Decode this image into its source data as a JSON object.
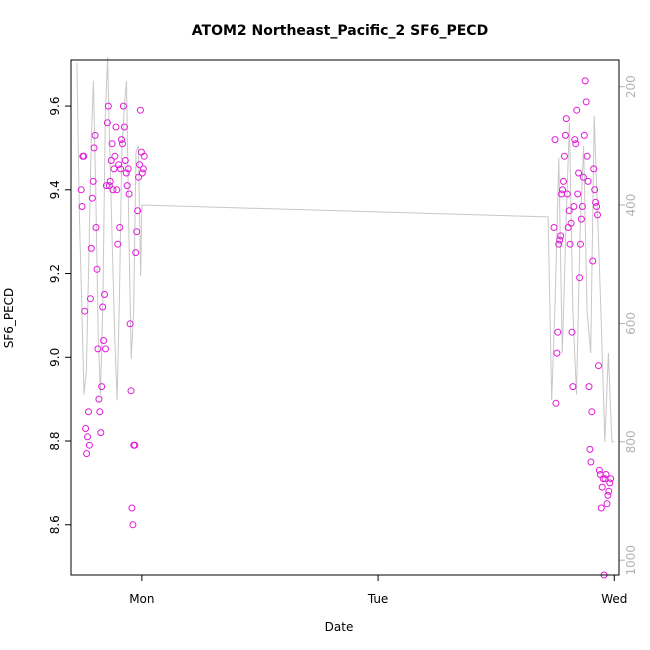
{
  "chart_data": {
    "type": "scatter",
    "title": "ATOM2 Northeast_Pacific_2 SF6_PECD",
    "xlabel": "Date",
    "ylabel": "SF6_PECD",
    "x_ticks": [
      "Mon",
      "Tue",
      "Wed"
    ],
    "x_range_days": [
      -0.3,
      2.02
    ],
    "ylim": [
      8.48,
      9.71
    ],
    "y_ticks": [
      8.6,
      8.8,
      9.0,
      9.2,
      9.4,
      9.6
    ],
    "right_axis": {
      "ticks": [
        200,
        400,
        600,
        800,
        1000
      ],
      "range": [
        155,
        1025
      ],
      "color": "#b3b3b3",
      "inverted": true
    },
    "point_color": "#e31ad8",
    "line_color": "#c8c8c8",
    "series": [
      {
        "kind": "points",
        "x": [
          -0.257,
          -0.253,
          -0.25,
          -0.246,
          -0.242,
          -0.238,
          -0.234,
          -0.23,
          -0.226,
          -0.222,
          -0.218,
          -0.214,
          -0.21,
          -0.206,
          -0.202,
          -0.198,
          -0.194,
          -0.19,
          -0.186,
          -0.182,
          -0.178,
          -0.174,
          -0.17,
          -0.166,
          -0.162,
          -0.158,
          -0.154,
          -0.15,
          -0.146,
          -0.142,
          -0.138,
          -0.134,
          -0.13,
          -0.126,
          -0.122,
          -0.118,
          -0.114,
          -0.11,
          -0.106,
          -0.102,
          -0.098,
          -0.094,
          -0.09,
          -0.086,
          -0.082,
          -0.078,
          -0.074,
          -0.07,
          -0.066,
          -0.062,
          -0.058,
          -0.054,
          -0.05,
          -0.046,
          -0.042,
          -0.038,
          -0.034,
          -0.03,
          -0.026,
          -0.022,
          -0.018,
          -0.014,
          -0.01,
          -0.006,
          -0.002,
          0.002,
          0.006,
          0.01
        ],
        "y": [
          9.4,
          9.36,
          9.48,
          9.48,
          9.11,
          8.83,
          8.77,
          8.81,
          8.87,
          8.79,
          9.14,
          9.26,
          9.38,
          9.42,
          9.5,
          9.53,
          9.31,
          9.21,
          9.02,
          8.9,
          8.87,
          8.82,
          8.93,
          9.12,
          9.04,
          9.15,
          9.02,
          9.41,
          9.56,
          9.6,
          9.41,
          9.42,
          9.47,
          9.51,
          9.4,
          9.45,
          9.48,
          9.55,
          9.4,
          9.27,
          9.46,
          9.31,
          9.45,
          9.52,
          9.51,
          9.6,
          9.55,
          9.47,
          9.44,
          9.41,
          9.45,
          9.39,
          9.08,
          8.92,
          8.64,
          8.6,
          8.79,
          8.79,
          9.25,
          9.3,
          9.35,
          9.43,
          9.46,
          9.59,
          9.49,
          9.44,
          9.45,
          9.48
        ]
      },
      {
        "kind": "points",
        "x": [
          1.745,
          1.749,
          1.753,
          1.757,
          1.761,
          1.765,
          1.769,
          1.773,
          1.777,
          1.781,
          1.785,
          1.789,
          1.793,
          1.797,
          1.801,
          1.805,
          1.809,
          1.813,
          1.817,
          1.821,
          1.825,
          1.829,
          1.833,
          1.837,
          1.841,
          1.845,
          1.849,
          1.853,
          1.857,
          1.861,
          1.865,
          1.869,
          1.873,
          1.877,
          1.881,
          1.885,
          1.889,
          1.893,
          1.897,
          1.901,
          1.905,
          1.909,
          1.913,
          1.917,
          1.921,
          1.925,
          1.929,
          1.933,
          1.937,
          1.941,
          1.945,
          1.949,
          1.953,
          1.957,
          1.961,
          1.965,
          1.969,
          1.973,
          1.977,
          1.981,
          1.985
        ],
        "y": [
          9.31,
          9.52,
          8.89,
          9.01,
          9.06,
          9.27,
          9.28,
          9.29,
          9.39,
          9.4,
          9.42,
          9.48,
          9.53,
          9.57,
          9.39,
          9.31,
          9.35,
          9.27,
          9.32,
          9.06,
          8.93,
          9.36,
          9.52,
          9.51,
          9.59,
          9.39,
          9.44,
          9.19,
          9.27,
          9.33,
          9.36,
          9.43,
          9.53,
          9.66,
          9.61,
          9.48,
          9.42,
          8.93,
          8.78,
          8.75,
          8.87,
          9.23,
          9.45,
          9.4,
          9.37,
          9.36,
          9.34,
          8.98,
          8.73,
          8.72,
          8.64,
          8.69,
          8.71,
          8.48,
          8.71,
          8.72,
          8.65,
          8.67,
          8.68,
          8.7,
          8.71
        ]
      },
      {
        "kind": "line",
        "x": [
          -0.275,
          -0.265,
          -0.255,
          -0.245,
          -0.235,
          -0.225,
          -0.215,
          -0.205,
          -0.195,
          -0.185,
          -0.175,
          -0.165,
          -0.155,
          -0.145,
          -0.135,
          -0.125,
          -0.115,
          -0.105,
          -0.095,
          -0.085,
          -0.075,
          -0.065,
          -0.055,
          -0.045,
          -0.035,
          -0.025,
          -0.015,
          -0.005,
          0.0,
          1.72,
          1.735,
          1.75,
          1.765,
          1.78,
          1.795,
          1.81,
          1.825,
          1.84,
          1.855,
          1.87,
          1.885,
          1.9,
          1.915,
          1.93,
          1.945,
          1.96,
          1.975,
          1.99,
          2.0
        ],
        "y": [
          160,
          410,
          560,
          720,
          680,
          500,
          300,
          190,
          380,
          620,
          720,
          560,
          250,
          150,
          320,
          470,
          620,
          730,
          560,
          310,
          240,
          190,
          450,
          660,
          580,
          310,
          300,
          520,
          400,
          420,
          730,
          560,
          320,
          650,
          440,
          260,
          580,
          720,
          450,
          300,
          580,
          650,
          250,
          420,
          600,
          800,
          650,
          800,
          800
        ]
      }
    ]
  }
}
